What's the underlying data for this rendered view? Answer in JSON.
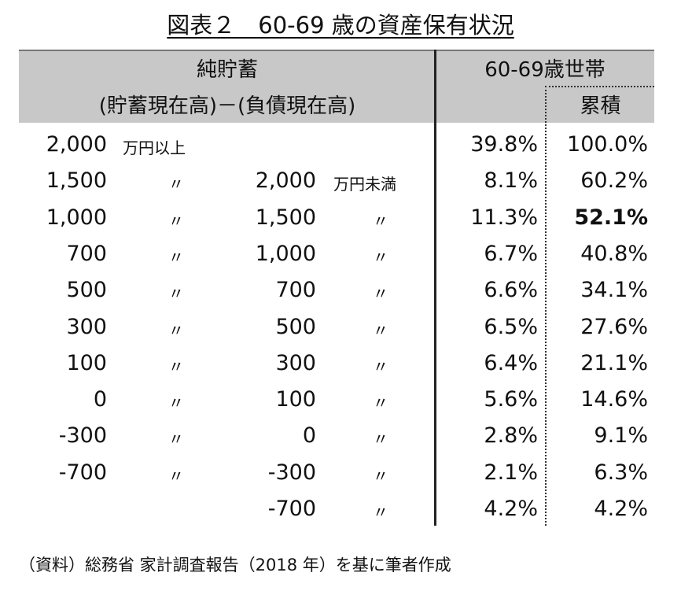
{
  "title": "図表２　60-69 歳の資産保有状況",
  "header": {
    "left_line1": "純貯蓄",
    "left_line2": "(貯蓄現在高)－(負債現在高)",
    "right_line1": "60-69歳世帯",
    "cumulative": "累積"
  },
  "rows": [
    {
      "from": "2,000",
      "from_unit": "万円以上",
      "mark1": "",
      "to": "",
      "to_unit": "",
      "pct": "39.8%",
      "cum": "100.0%"
    },
    {
      "from": "1,500",
      "from_unit": "",
      "mark1": "〃",
      "to": "2,000",
      "to_unit": "万円未満",
      "pct": "8.1%",
      "cum": "60.2%"
    },
    {
      "from": "1,000",
      "from_unit": "",
      "mark1": "〃",
      "to": "1,500",
      "to_unit": "〃",
      "pct": "11.3%",
      "cum": "52.1%"
    },
    {
      "from": "700",
      "from_unit": "",
      "mark1": "〃",
      "to": "1,000",
      "to_unit": "〃",
      "pct": "6.7%",
      "cum": "40.8%"
    },
    {
      "from": "500",
      "from_unit": "",
      "mark1": "〃",
      "to": "700",
      "to_unit": "〃",
      "pct": "6.6%",
      "cum": "34.1%"
    },
    {
      "from": "300",
      "from_unit": "",
      "mark1": "〃",
      "to": "500",
      "to_unit": "〃",
      "pct": "6.5%",
      "cum": "27.6%"
    },
    {
      "from": "100",
      "from_unit": "",
      "mark1": "〃",
      "to": "300",
      "to_unit": "〃",
      "pct": "6.4%",
      "cum": "21.1%"
    },
    {
      "from": "0",
      "from_unit": "",
      "mark1": "〃",
      "to": "100",
      "to_unit": "〃",
      "pct": "5.6%",
      "cum": "14.6%"
    },
    {
      "from": "-300",
      "from_unit": "",
      "mark1": "〃",
      "to": "0",
      "to_unit": "〃",
      "pct": "2.8%",
      "cum": "9.1%"
    },
    {
      "from": "-700",
      "from_unit": "",
      "mark1": "〃",
      "to": "-300",
      "to_unit": "〃",
      "pct": "2.1%",
      "cum": "6.3%"
    },
    {
      "from": "",
      "from_unit": "",
      "mark1": "",
      "to": "-700",
      "to_unit": "〃",
      "pct": "4.2%",
      "cum": "4.2%"
    }
  ],
  "note": "（資料）総務省  家計調査報告（2018 年）を基に筆者作成"
}
